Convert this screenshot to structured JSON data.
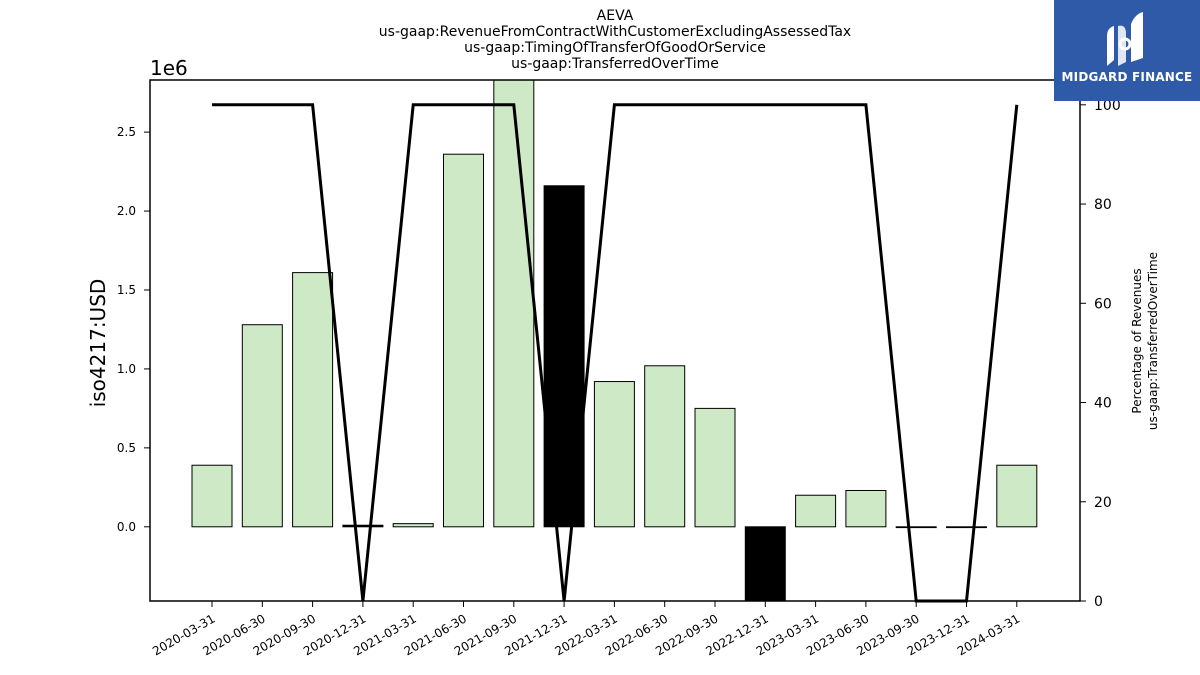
{
  "titles": [
    "AEVA",
    "us-gaap:RevenueFromContractWithCustomerExcludingAssessedTax",
    "us-gaap:TimingOfTransferOfGoodOrService",
    "us-gaap:TransferredOverTime"
  ],
  "scale_label": "1e6",
  "ylabel_left": "iso4217:USD",
  "ylabel_right_lines": [
    "Percentage of Revenues",
    "us-gaap:TransferredOverTime"
  ],
  "logo": {
    "text": "MIDGARD FINANCE",
    "color": "#2f5aa8"
  },
  "chart_data": {
    "type": "bar",
    "categories": [
      "2020-03-31",
      "2020-06-30",
      "2020-09-30",
      "2020-12-31",
      "2021-03-31",
      "2021-06-30",
      "2021-09-30",
      "2021-12-31",
      "2022-03-31",
      "2022-06-30",
      "2022-09-30",
      "2022-12-31",
      "2023-03-31",
      "2023-06-30",
      "2023-09-30",
      "2023-12-31",
      "2024-03-31"
    ],
    "series": [
      {
        "axis": "left",
        "type": "bar",
        "values": [
          390000,
          1280000,
          1610000,
          10000,
          20000,
          2360000,
          2850000,
          2160000,
          920000,
          1020000,
          750000,
          -470000,
          200000,
          230000,
          0,
          0,
          390000
        ],
        "colors": [
          "#cde9c6",
          "#cde9c6",
          "#cde9c6",
          "#000000",
          "#cde9c6",
          "#cde9c6",
          "#cde9c6",
          "#000000",
          "#cde9c6",
          "#cde9c6",
          "#cde9c6",
          "#000000",
          "#cde9c6",
          "#cde9c6",
          "#000000",
          "#000000",
          "#cde9c6"
        ]
      },
      {
        "axis": "right",
        "type": "line",
        "values": [
          100,
          100,
          100,
          0,
          100,
          100,
          100,
          0,
          100,
          100,
          100,
          null,
          100,
          100,
          0,
          0,
          100
        ],
        "color": "#000000"
      }
    ],
    "ylim_left": [
      -470000,
      2830000
    ],
    "yticks_left": [
      0.0,
      0.5,
      1.0,
      1.5,
      2.0,
      2.5
    ],
    "ylim_right": [
      0,
      105
    ],
    "yticks_right": [
      0,
      20,
      40,
      60,
      80,
      100
    ],
    "grid": false
  }
}
